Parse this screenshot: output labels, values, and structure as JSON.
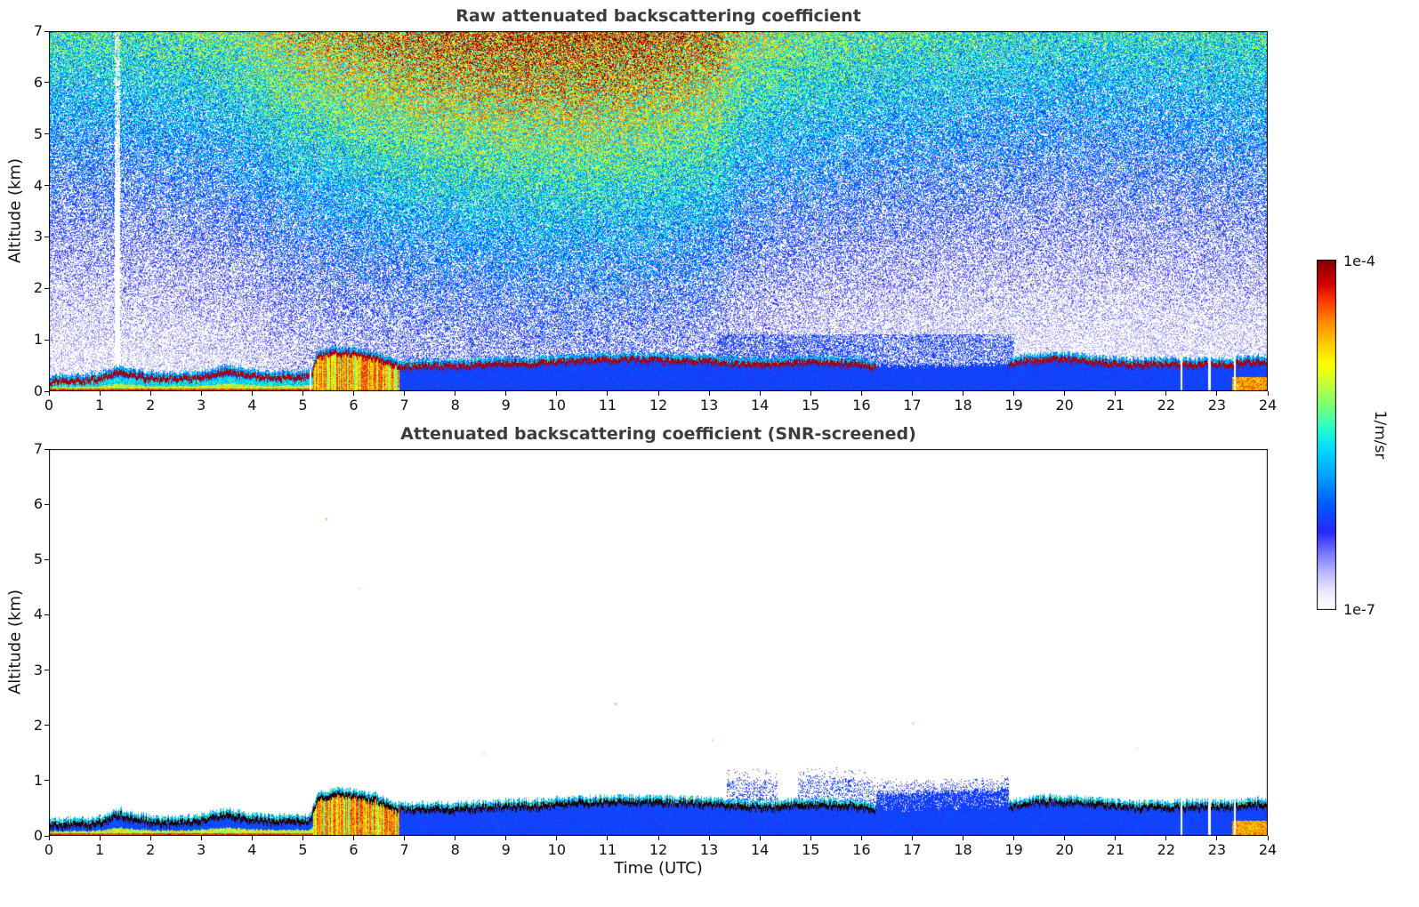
{
  "figure": {
    "background": "#ffffff"
  },
  "colorbar": {
    "units_label": "1/m/sr",
    "max_label": "1e-4",
    "min_label": "1e-7",
    "scale": "log",
    "range": [
      1e-07,
      0.0001
    ],
    "colormap_stops": [
      {
        "v": 0.0,
        "color": "#ffffff"
      },
      {
        "v": 0.05,
        "color": "#ebe9ff"
      },
      {
        "v": 0.1,
        "color": "#bebeff"
      },
      {
        "v": 0.16,
        "color": "#7878ff"
      },
      {
        "v": 0.22,
        "color": "#2828fa"
      },
      {
        "v": 0.3,
        "color": "#005aff"
      },
      {
        "v": 0.38,
        "color": "#00a0ff"
      },
      {
        "v": 0.46,
        "color": "#00dcff"
      },
      {
        "v": 0.52,
        "color": "#28ffc8"
      },
      {
        "v": 0.58,
        "color": "#78ff78"
      },
      {
        "v": 0.64,
        "color": "#beff3c"
      },
      {
        "v": 0.7,
        "color": "#ffff00"
      },
      {
        "v": 0.76,
        "color": "#ffc800"
      },
      {
        "v": 0.82,
        "color": "#ff8c00"
      },
      {
        "v": 0.88,
        "color": "#ff3c00"
      },
      {
        "v": 0.93,
        "color": "#d70000"
      },
      {
        "v": 1.0,
        "color": "#800000"
      }
    ]
  },
  "chart_data": [
    {
      "type": "heatmap",
      "title": "Raw attenuated backscattering coefficient",
      "xlabel": "",
      "ylabel": "Altitude (km)",
      "xlim": [
        0,
        24
      ],
      "ylim": [
        0,
        7
      ],
      "xticks": [
        0,
        1,
        2,
        3,
        4,
        5,
        6,
        7,
        8,
        9,
        10,
        11,
        12,
        13,
        14,
        15,
        16,
        17,
        18,
        19,
        20,
        21,
        22,
        23,
        24
      ],
      "yticks": [
        0,
        1,
        2,
        3,
        4,
        5,
        6,
        7
      ],
      "value_units": "1/m/sr",
      "value_range": [
        1e-07,
        0.0001
      ],
      "layer_top_line_color": "#8b0000",
      "boundary_layer_top_km": [
        [
          0,
          0.22
        ],
        [
          0.7,
          0.24
        ],
        [
          1.1,
          0.3
        ],
        [
          1.4,
          0.42
        ],
        [
          1.7,
          0.34
        ],
        [
          2.2,
          0.27
        ],
        [
          2.8,
          0.28
        ],
        [
          3.2,
          0.35
        ],
        [
          3.5,
          0.42
        ],
        [
          3.9,
          0.34
        ],
        [
          4.4,
          0.3
        ],
        [
          4.9,
          0.3
        ],
        [
          5.15,
          0.32
        ],
        [
          5.3,
          0.72
        ],
        [
          5.6,
          0.78
        ],
        [
          6,
          0.76
        ],
        [
          6.4,
          0.7
        ],
        [
          6.8,
          0.55
        ],
        [
          7,
          0.5
        ],
        [
          7.5,
          0.53
        ],
        [
          8,
          0.52
        ],
        [
          8.5,
          0.55
        ],
        [
          9,
          0.57
        ],
        [
          9.5,
          0.58
        ],
        [
          10,
          0.6
        ],
        [
          10.5,
          0.63
        ],
        [
          11,
          0.65
        ],
        [
          11.5,
          0.65
        ],
        [
          12,
          0.64
        ],
        [
          12.5,
          0.62
        ],
        [
          13,
          0.62
        ],
        [
          13.4,
          0.57
        ],
        [
          14,
          0.55
        ],
        [
          14.5,
          0.57
        ],
        [
          15,
          0.6
        ],
        [
          15.5,
          0.59
        ],
        [
          16,
          0.56
        ],
        [
          16.3,
          0.5
        ],
        [
          17,
          0.48
        ],
        [
          18,
          0.5
        ],
        [
          18.9,
          0.55
        ],
        [
          19.2,
          0.62
        ],
        [
          19.7,
          0.66
        ],
        [
          20.3,
          0.64
        ],
        [
          20.8,
          0.58
        ],
        [
          21.3,
          0.55
        ],
        [
          22,
          0.55
        ],
        [
          22.7,
          0.56
        ],
        [
          23.3,
          0.56
        ],
        [
          23.7,
          0.6
        ],
        [
          24,
          0.6
        ]
      ],
      "cloud_line_gap_utc": [
        16.3,
        18.9
      ],
      "precipitation_event_utc": [
        5.2,
        6.9
      ],
      "data_gap_times_utc": [
        5.15,
        22.3,
        22.85,
        23.35
      ],
      "noise_dim_stripe_utc": 1.35,
      "noise_amplitude_by_time_utc": [
        [
          0,
          0.56
        ],
        [
          2,
          0.58
        ],
        [
          3.5,
          0.62
        ],
        [
          5,
          0.78
        ],
        [
          6,
          0.85
        ],
        [
          7.5,
          0.93
        ],
        [
          9,
          0.98
        ],
        [
          10.5,
          1
        ],
        [
          12,
          0.96
        ],
        [
          13.2,
          0.88
        ],
        [
          13.6,
          0.72
        ],
        [
          14.5,
          0.66
        ],
        [
          16,
          0.6
        ],
        [
          18,
          0.56
        ],
        [
          20,
          0.53
        ],
        [
          22,
          0.54
        ],
        [
          24,
          0.56
        ]
      ],
      "description": "Speckle noise above the aerosol layer grows with altitude: yellow-green 0-5 UTC, orange-red 6-13 UTC, cyan-green 14-24 UTC; dark-red layer-top line at 0.2-0.8 km."
    },
    {
      "type": "heatmap",
      "title": "Attenuated backscattering coefficient (SNR-screened)",
      "xlabel": "Time (UTC)",
      "ylabel": "Altitude (km)",
      "xlim": [
        0,
        24
      ],
      "ylim": [
        0,
        7
      ],
      "xticks": [
        0,
        1,
        2,
        3,
        4,
        5,
        6,
        7,
        8,
        9,
        10,
        11,
        12,
        13,
        14,
        15,
        16,
        17,
        18,
        19,
        20,
        21,
        22,
        23,
        24
      ],
      "yticks": [
        0,
        1,
        2,
        3,
        4,
        5,
        6,
        7
      ],
      "value_units": "1/m/sr",
      "value_range": [
        1e-07,
        0.0001
      ],
      "layer_top_line_color": "#000000",
      "boundary_layer_top_km": [
        [
          0,
          0.22
        ],
        [
          0.7,
          0.24
        ],
        [
          1.1,
          0.3
        ],
        [
          1.4,
          0.42
        ],
        [
          1.7,
          0.34
        ],
        [
          2.2,
          0.27
        ],
        [
          2.8,
          0.28
        ],
        [
          3.2,
          0.35
        ],
        [
          3.5,
          0.42
        ],
        [
          3.9,
          0.34
        ],
        [
          4.4,
          0.3
        ],
        [
          4.9,
          0.3
        ],
        [
          5.15,
          0.32
        ],
        [
          5.3,
          0.72
        ],
        [
          5.6,
          0.78
        ],
        [
          6,
          0.76
        ],
        [
          6.4,
          0.7
        ],
        [
          6.8,
          0.55
        ],
        [
          7,
          0.5
        ],
        [
          7.5,
          0.53
        ],
        [
          8,
          0.52
        ],
        [
          8.5,
          0.55
        ],
        [
          9,
          0.57
        ],
        [
          9.5,
          0.58
        ],
        [
          10,
          0.6
        ],
        [
          10.5,
          0.63
        ],
        [
          11,
          0.65
        ],
        [
          11.5,
          0.65
        ],
        [
          12,
          0.64
        ],
        [
          12.5,
          0.62
        ],
        [
          13,
          0.62
        ],
        [
          13.4,
          0.57
        ],
        [
          14,
          0.55
        ],
        [
          14.5,
          0.57
        ],
        [
          15,
          0.6
        ],
        [
          15.5,
          0.59
        ],
        [
          16,
          0.56
        ],
        [
          16.3,
          0.5
        ],
        [
          17,
          0.48
        ],
        [
          18,
          0.5
        ],
        [
          18.9,
          0.55
        ],
        [
          19.2,
          0.62
        ],
        [
          19.7,
          0.66
        ],
        [
          20.3,
          0.64
        ],
        [
          20.8,
          0.58
        ],
        [
          21.3,
          0.55
        ],
        [
          22,
          0.55
        ],
        [
          22.7,
          0.56
        ],
        [
          23.3,
          0.56
        ],
        [
          23.7,
          0.6
        ],
        [
          24,
          0.6
        ]
      ],
      "line_gap_utc": [
        16.3,
        18.9
      ],
      "precipitation_event_utc": [
        5.2,
        6.9
      ],
      "data_gap_times_utc": [
        22.3,
        22.85,
        23.35
      ],
      "scattered_echo_windows_utc": [
        [
          13.35,
          14.35
        ],
        [
          14.75,
          16.3
        ],
        [
          16.3,
          19
        ]
      ],
      "specks": [
        [
          5.45,
          5.75,
          "#ffa040"
        ],
        [
          6.1,
          4.5,
          "#ffe080"
        ],
        [
          8.55,
          1.5,
          "#ffd27f"
        ],
        [
          11.15,
          2.4,
          "#ff9f40"
        ],
        [
          13.05,
          1.75,
          "#ffcf60"
        ],
        [
          17,
          2.05,
          "#ffb060"
        ],
        [
          21.4,
          1.6,
          "#bfe8ff"
        ]
      ],
      "description": "Noise removed; only the boundary-layer aerosol (blue) below ~1 km remains, topped by a black line with a cyan-green fringe; line absent 16.3-18.9 UTC."
    }
  ]
}
